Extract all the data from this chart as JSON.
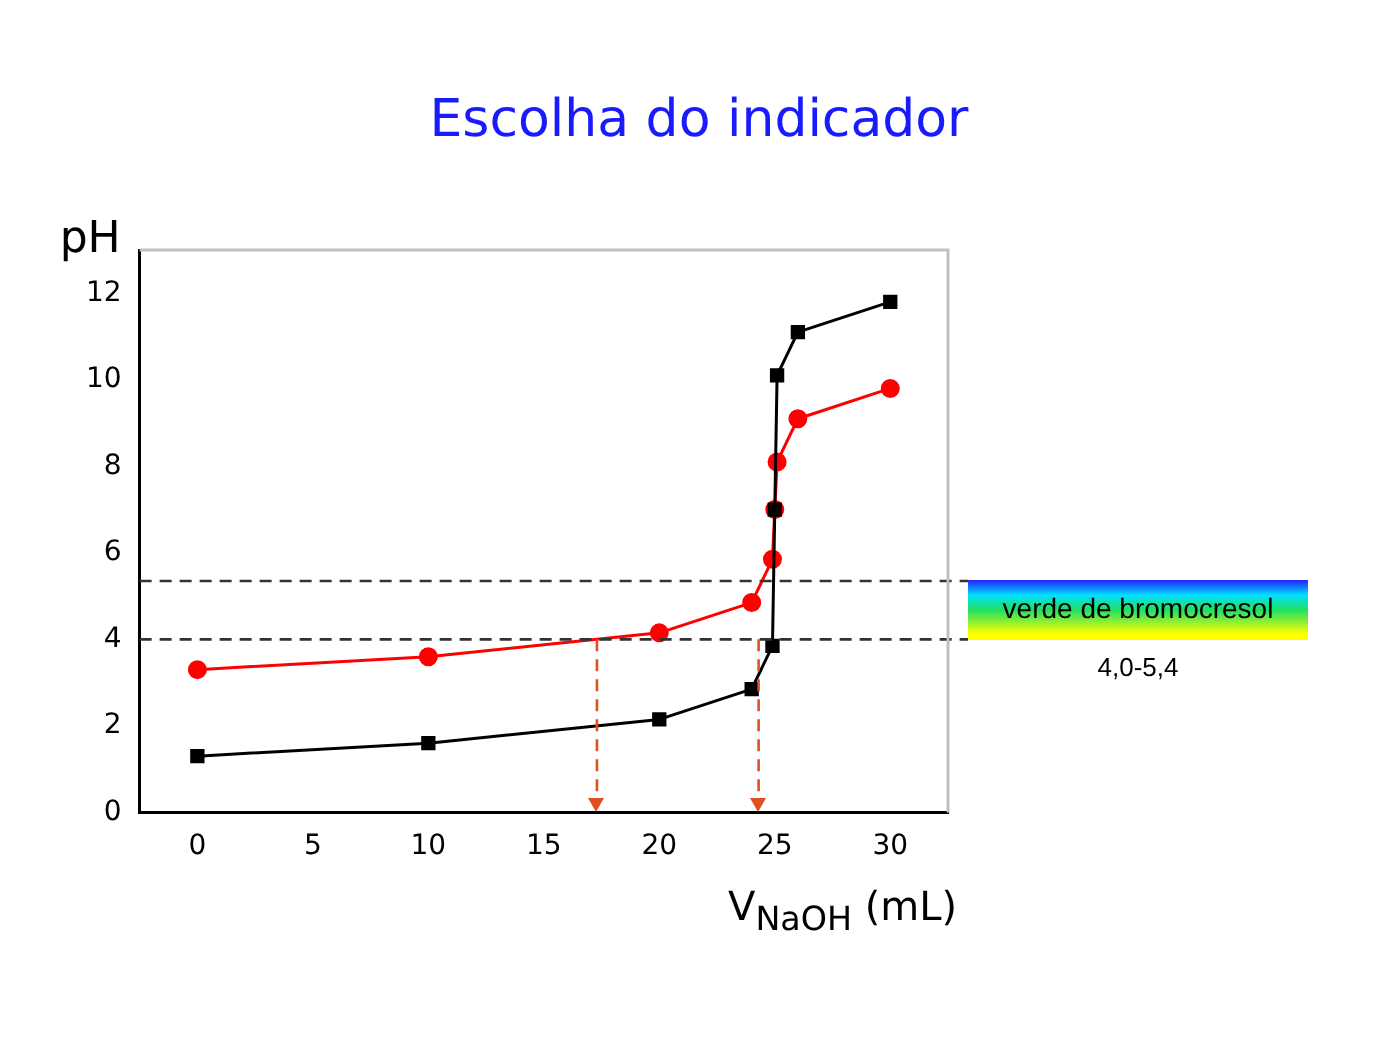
{
  "chart_data": {
    "type": "line",
    "title": "Escolha do indicador",
    "xlabel": "V$_{NaOH}$ (mL)",
    "ylabel": "pH",
    "series": [
      {
        "color": "#000000",
        "marker": "square",
        "x": [
          0,
          10,
          20,
          24,
          24.9,
          25,
          25.1,
          26,
          30
        ],
        "values": [
          1.3,
          1.6,
          2.15,
          2.85,
          3.85,
          7.0,
          10.1,
          11.1,
          11.8
        ]
      },
      {
        "color": "#ff0000",
        "marker": "circle",
        "x": [
          0,
          10,
          20,
          24,
          24.9,
          25,
          25.1,
          26,
          30
        ],
        "values": [
          3.3,
          3.6,
          4.15,
          4.85,
          5.85,
          7.0,
          8.1,
          9.1,
          9.8
        ]
      }
    ],
    "xlim": [
      -2.5,
      32.5
    ],
    "xticks": [
      0,
      5,
      10,
      15,
      20,
      25,
      30
    ],
    "ylim": [
      0,
      13
    ],
    "yticks": [
      0,
      2,
      4,
      6,
      8,
      10,
      12
    ],
    "grid": false,
    "legend": false,
    "ref_lines": [
      {
        "axis": "y",
        "value": 5.35,
        "color": "#333333",
        "line_style": "dashed"
      },
      {
        "axis": "y",
        "value": 4.0,
        "color": "#333333",
        "line_style": "dashed"
      },
      {
        "axis": "x",
        "value": 17.3,
        "color": "#e05020",
        "line_style": "dashed"
      },
      {
        "axis": "x",
        "value": 24.3,
        "color": "#e05020",
        "line_style": "dashed"
      }
    ],
    "annotations": [
      "verde de bromocresol",
      "4,0-5,4"
    ]
  }
}
